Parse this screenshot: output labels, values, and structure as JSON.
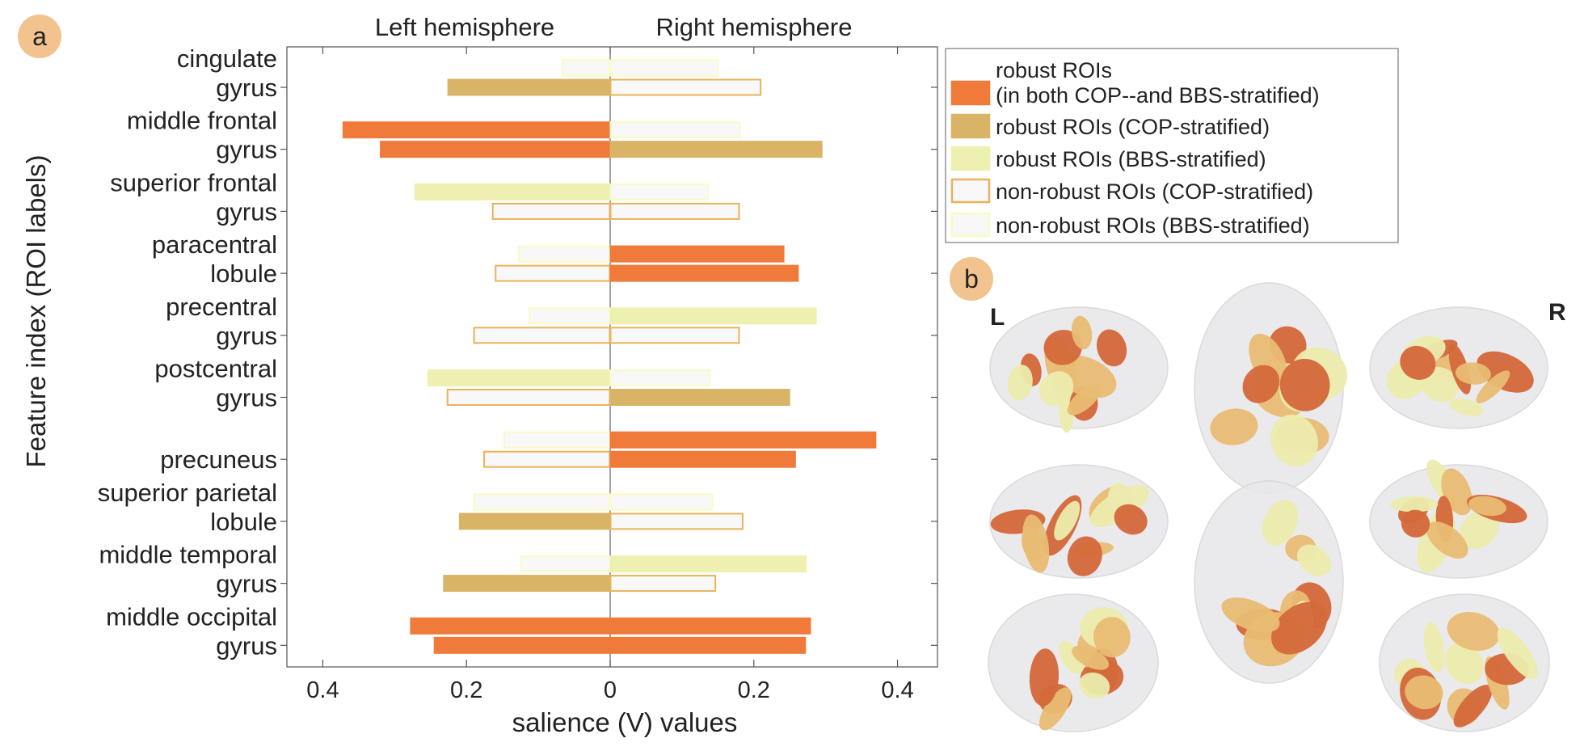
{
  "panels": {
    "a": "a",
    "b": "b"
  },
  "chart_data": {
    "type": "bar",
    "orientation": "horizontal",
    "hemisphere_labels": [
      "Left hemisphere",
      "Right hemisphere"
    ],
    "xlabel": "salience (V) values",
    "ylabel": "Feature index (ROI labels)",
    "xlim_left": [
      0,
      0.45
    ],
    "xlim_right": [
      0,
      0.45
    ],
    "xticks": [
      {
        "label": "0.4",
        "side": "left",
        "value": 0.4
      },
      {
        "label": "0.2",
        "side": "left",
        "value": 0.2
      },
      {
        "label": "0",
        "side": "left",
        "value": 0
      },
      {
        "label": "0.2",
        "side": "right",
        "value": 0.2
      },
      {
        "label": "0.4",
        "side": "right",
        "value": 0.4
      }
    ],
    "categories": [
      [
        "cingulate",
        "gyrus"
      ],
      [
        "middle frontal",
        "gyrus"
      ],
      [
        "superior frontal",
        "gyrus"
      ],
      [
        "paracentral",
        "lobule"
      ],
      [
        "precentral",
        "gyrus"
      ],
      [
        "postcentral",
        "gyrus"
      ],
      [
        "precuneus"
      ],
      [
        "superior parietal",
        "lobule"
      ],
      [
        "middle temporal",
        "gyrus"
      ],
      [
        "middle occipital",
        "gyrus"
      ]
    ],
    "bar_styles": {
      "both": {
        "fill": "#ef7a3a",
        "stroke": "#ef7a3a"
      },
      "cop": {
        "fill": "#dab466",
        "stroke": "#dab466"
      },
      "bbs": {
        "fill": "#eef0b0",
        "stroke": "#eef0b0"
      },
      "cop_nr": {
        "fill": "#f8f8f8",
        "stroke": "#e8b35a"
      },
      "bbs_nr": {
        "fill": "#f8f8f8",
        "stroke": "#fafac4"
      }
    },
    "series": [
      {
        "side": "left",
        "row": "bbs",
        "values": [
          0.067,
          0.372,
          0.272,
          0.128,
          0.113,
          0.254,
          0.148,
          0.19,
          0.125,
          0.278
        ],
        "styles": [
          "bbs_nr",
          "both",
          "bbs",
          "bbs_nr",
          "bbs_nr",
          "bbs",
          "bbs_nr",
          "bbs_nr",
          "bbs_nr",
          "both"
        ]
      },
      {
        "side": "left",
        "row": "cop",
        "values": [
          0.226,
          0.32,
          0.164,
          0.16,
          0.19,
          0.227,
          0.176,
          0.21,
          0.232,
          0.245
        ],
        "styles": [
          "cop",
          "both",
          "cop_nr",
          "cop_nr",
          "cop_nr",
          "cop_nr",
          "cop_nr",
          "cop",
          "cop",
          "both"
        ]
      },
      {
        "side": "right",
        "row": "bbs",
        "values": [
          0.151,
          0.181,
          0.137,
          0.242,
          0.287,
          0.139,
          0.37,
          0.143,
          0.273,
          0.279
        ],
        "styles": [
          "bbs_nr",
          "bbs_nr",
          "bbs_nr",
          "both",
          "bbs",
          "bbs_nr",
          "both",
          "bbs_nr",
          "bbs",
          "both"
        ]
      },
      {
        "side": "right",
        "row": "cop",
        "values": [
          0.21,
          0.295,
          0.18,
          0.262,
          0.18,
          0.25,
          0.258,
          0.185,
          0.147,
          0.272
        ],
        "styles": [
          "cop_nr",
          "cop",
          "cop_nr",
          "both",
          "cop_nr",
          "cop",
          "both",
          "cop_nr",
          "cop_nr",
          "both"
        ]
      }
    ],
    "legend": [
      {
        "style": "both",
        "lines": [
          "robust ROIs",
          "(in both COP--and BBS-stratified)"
        ]
      },
      {
        "style": "cop",
        "lines": [
          "robust ROIs (COP-stratified)"
        ]
      },
      {
        "style": "bbs",
        "lines": [
          "robust ROIs (BBS-stratified)"
        ]
      },
      {
        "style": "cop_nr",
        "lines": [
          "non-robust ROIs (COP-stratified)"
        ]
      },
      {
        "style": "bbs_nr",
        "lines": [
          "non-robust ROIs (BBS-stratified)"
        ]
      }
    ],
    "legend_position": "right"
  },
  "brain_panel": {
    "side_labels": [
      "L",
      "R"
    ],
    "views": [
      "left-lateral",
      "superior",
      "right-lateral",
      "left-medial",
      "inferior",
      "right-medial",
      "posterior",
      "anterior"
    ],
    "colors": {
      "both": "#d4683a",
      "cop": "#e9bc74",
      "bbs": "#ecebad",
      "shell": "#e8e8ea"
    }
  }
}
